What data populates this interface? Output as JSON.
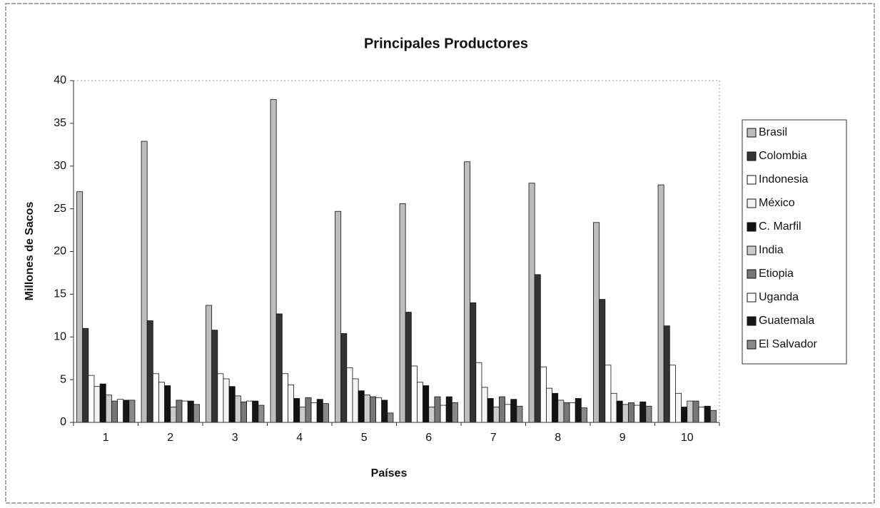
{
  "chart_data": {
    "type": "bar",
    "title": "Principales Productores",
    "x_label": "Países",
    "y_label": "Millones de Sacos",
    "categories": [
      "1",
      "2",
      "3",
      "4",
      "5",
      "6",
      "7",
      "8",
      "9",
      "10"
    ],
    "series": [
      {
        "name": "Brasil",
        "color": "#bdbdbd",
        "values": [
          27,
          32.9,
          13.7,
          37.8,
          24.7,
          25.6,
          30.5,
          28.0,
          23.4,
          27.8
        ]
      },
      {
        "name": "Colombia",
        "color": "#333333",
        "values": [
          11,
          11.9,
          10.8,
          12.7,
          10.4,
          12.9,
          14.0,
          17.3,
          14.4,
          11.3
        ]
      },
      {
        "name": "Indonesia",
        "color": "#ffffff",
        "values": [
          5.5,
          5.7,
          5.7,
          5.7,
          6.4,
          6.6,
          7.0,
          6.5,
          6.7,
          6.7
        ]
      },
      {
        "name": "México",
        "color": "#f4f4f4",
        "values": [
          4.2,
          4.7,
          5.1,
          4.4,
          5.1,
          4.7,
          4.1,
          4.0,
          3.4,
          3.4
        ]
      },
      {
        "name": "C. Marfil",
        "color": "#111111",
        "values": [
          4.5,
          4.3,
          4.2,
          2.8,
          3.7,
          4.3,
          2.8,
          3.4,
          2.5,
          1.8
        ]
      },
      {
        "name": "India",
        "color": "#cccccc",
        "values": [
          3.2,
          1.8,
          3.1,
          1.8,
          3.2,
          1.8,
          1.8,
          2.6,
          2.1,
          2.5
        ]
      },
      {
        "name": "Etiopia",
        "color": "#777777",
        "values": [
          2.5,
          2.6,
          2.4,
          2.9,
          3.0,
          3.0,
          3.0,
          2.3,
          2.3,
          2.5
        ]
      },
      {
        "name": "Uganda",
        "color": "#ffffff",
        "values": [
          2.7,
          2.5,
          2.5,
          2.3,
          2.9,
          2.0,
          2.1,
          2.3,
          2.0,
          1.8
        ]
      },
      {
        "name": "Guatemala",
        "color": "#161616",
        "values": [
          2.6,
          2.5,
          2.5,
          2.7,
          2.6,
          3.0,
          2.7,
          2.8,
          2.4,
          1.9
        ]
      },
      {
        "name": "El Salvador",
        "color": "#8a8a8a",
        "values": [
          2.6,
          2.1,
          2.0,
          2.2,
          1.1,
          2.3,
          1.9,
          1.7,
          1.9,
          1.4
        ]
      }
    ],
    "ylim": [
      0,
      40
    ],
    "yticks": [
      0,
      5,
      10,
      15,
      20,
      25,
      30,
      35,
      40
    ],
    "grid": false,
    "legend": "right"
  }
}
